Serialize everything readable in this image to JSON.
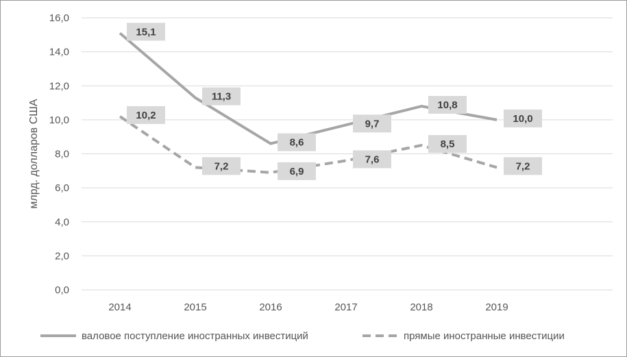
{
  "chart_data": {
    "type": "line",
    "title": "",
    "xlabel": "",
    "ylabel": "млрд. долларов США",
    "categories": [
      "2014",
      "2015",
      "2016",
      "2017",
      "2018",
      "2019"
    ],
    "ylim": [
      0,
      16
    ],
    "yticks": [
      "0,0",
      "2,0",
      "4,0",
      "6,0",
      "8,0",
      "10,0",
      "12,0",
      "14,0",
      "16,0"
    ],
    "grid": true,
    "legend_position": "bottom",
    "series": [
      {
        "name": "валовое поступление иностранных инвестиций",
        "values": [
          15.1,
          11.3,
          8.6,
          9.7,
          10.8,
          10.0
        ],
        "labels": [
          "15,1",
          "11,3",
          "8,6",
          "9,7",
          "10,8",
          "10,0"
        ],
        "style": "solid",
        "color": "#a6a6a6"
      },
      {
        "name": "прямые иностранные инвестиции",
        "values": [
          10.2,
          7.2,
          6.9,
          7.6,
          8.5,
          7.2
        ],
        "labels": [
          "10,2",
          "7,2",
          "6,9",
          "7,6",
          "8,5",
          "7,2"
        ],
        "style": "dashed",
        "color": "#a6a6a6"
      }
    ]
  }
}
